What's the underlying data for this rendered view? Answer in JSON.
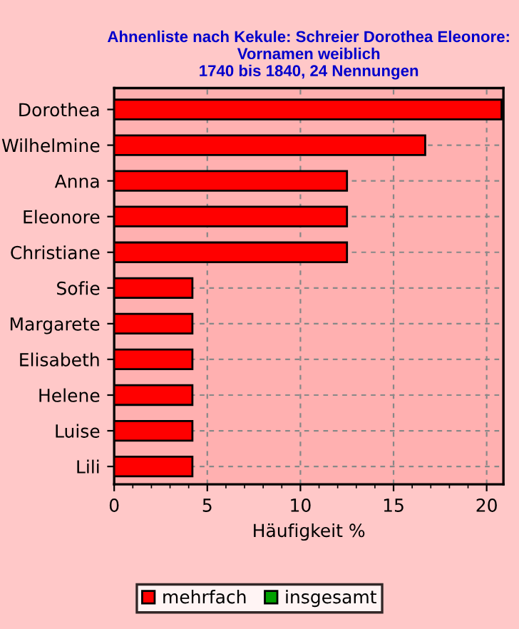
{
  "chart_data": {
    "type": "bar",
    "orientation": "horizontal",
    "title": "Ahnenliste nach Kekule: Schreier Dorothea Eleonore:\nVornamen weiblich\n1740 bis 1840, 24 Nennungen",
    "xlabel": "Häufigkeit %",
    "categories": [
      "Dorothea",
      "Wilhelmine",
      "Anna",
      "Eleonore",
      "Christiane",
      "Sofie",
      "Margarete",
      "Elisabeth",
      "Helene",
      "Luise",
      "Lili"
    ],
    "series": [
      {
        "name": "mehrfach",
        "color": "#ff0000",
        "values": [
          20.8,
          16.7,
          12.5,
          12.5,
          12.5,
          4.2,
          4.2,
          4.2,
          4.2,
          4.2,
          4.2
        ]
      },
      {
        "name": "insgesamt",
        "color": "#00a000",
        "values": [
          null,
          null,
          null,
          null,
          null,
          null,
          null,
          null,
          null,
          null,
          null
        ]
      }
    ],
    "xlim": [
      0,
      20.9
    ],
    "xticks": [
      0,
      5,
      10,
      15,
      20
    ],
    "grid": true,
    "legend": "bottom"
  }
}
